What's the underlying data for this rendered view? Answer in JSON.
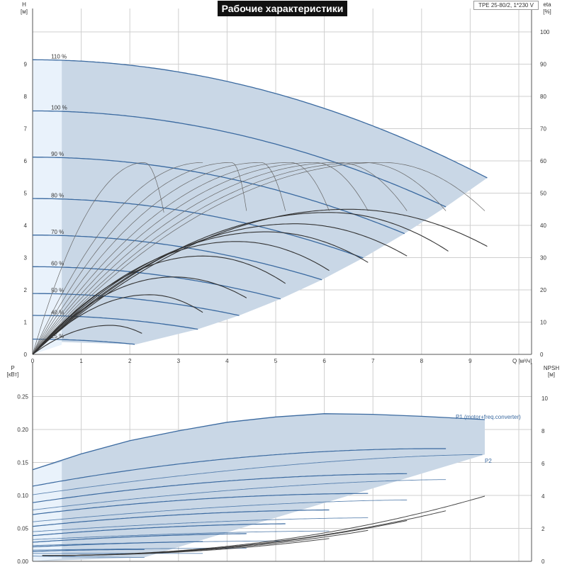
{
  "colors": {
    "band": "#c9d7e6",
    "band_light": "#e9f2fb",
    "curve": "#3b6aa0",
    "eta": "#333333",
    "grid": "#cfcfcf",
    "axis": "#555555"
  },
  "chart_data": [
    {
      "type": "line",
      "title": "Рабочие характеристики",
      "model": "TPE 25-80/2, 1*230 V",
      "xlabel": "Q [м³/ч]",
      "ylabel_left": [
        "H",
        "[м]"
      ],
      "ylabel_right": [
        "eta",
        "[%]"
      ],
      "xlim": [
        0,
        10
      ],
      "ylim": [
        0,
        10
      ],
      "y2lim": [
        0,
        110
      ],
      "xticks": [
        "0",
        "1",
        "2",
        "3",
        "4",
        "5",
        "6",
        "7",
        "8",
        "9"
      ],
      "yticks": [
        "0",
        "1",
        "2",
        "3",
        "4",
        "5",
        "6",
        "7",
        "8",
        "9"
      ],
      "y2ticks": [
        "0",
        "10",
        "20",
        "30",
        "40",
        "50",
        "60",
        "70",
        "80",
        "90",
        "100"
      ],
      "grid": true,
      "speed_curves": [
        {
          "label": "110 %",
          "s": 1.1
        },
        {
          "label": "100 %",
          "s": 1.0
        },
        {
          "label": "90 %",
          "s": 0.9
        },
        {
          "label": "80 %",
          "s": 0.8
        },
        {
          "label": "70 %",
          "s": 0.7
        },
        {
          "label": "60 %",
          "s": 0.6
        },
        {
          "label": "50 %",
          "s": 0.5
        },
        {
          "label": "40 %",
          "s": 0.4
        },
        {
          "label": "25 %",
          "s": 0.25
        }
      ],
      "head_curve_100": {
        "H0": 7.55,
        "a": 0.0343,
        "b": 0.0069,
        "qmax_110": 9.35
      },
      "eta_curves_grey": [
        {
          "qmax": 3.5,
          "qend": 3.5,
          "eend": 44.5
        },
        {
          "qmax": 4.1,
          "qend": 4.4,
          "eend": 44.5
        },
        {
          "qmax": 4.7,
          "qend": 5.2,
          "eend": 44.5
        },
        {
          "qmax": 5.3,
          "qend": 6.1,
          "eend": 44.5
        },
        {
          "qmax": 5.8,
          "qend": 6.9,
          "eend": 44.5
        },
        {
          "qmax": 6.3,
          "qend": 7.7,
          "eend": 44.5
        },
        {
          "qmax": 6.8,
          "qend": 8.5,
          "eend": 44.5
        },
        {
          "qmax": 7.2,
          "qend": 9.3,
          "eend": 44.5
        }
      ],
      "eta_top_center": {
        "qmax": 2.3,
        "qend": 2.3,
        "eend": 44.0
      },
      "eta_curves_black": [
        {
          "qpeak": 1.6,
          "epeak": 9.0,
          "qend": 2.25,
          "eend": 6.5
        },
        {
          "qpeak": 2.4,
          "epeak": 18.5,
          "qend": 3.5,
          "eend": 13.0
        },
        {
          "qpeak": 2.9,
          "epeak": 24.0,
          "qend": 4.4,
          "eend": 17.5
        },
        {
          "qpeak": 3.5,
          "epeak": 30.5,
          "qend": 5.2,
          "eend": 22.0
        },
        {
          "qpeak": 4.2,
          "epeak": 35.0,
          "qend": 6.1,
          "eend": 26.0
        },
        {
          "qpeak": 4.8,
          "epeak": 38.0,
          "qend": 6.9,
          "eend": 28.5
        },
        {
          "qpeak": 5.4,
          "epeak": 40.5,
          "qend": 7.7,
          "eend": 30.5
        },
        {
          "qpeak": 6.1,
          "epeak": 44.0,
          "qend": 8.55,
          "eend": 32.0
        },
        {
          "qpeak": 6.5,
          "epeak": 45.0,
          "qend": 9.35,
          "eend": 33.5
        }
      ]
    },
    {
      "type": "line",
      "ylabel_left": [
        "P",
        "[кВт]"
      ],
      "ylabel_right": [
        "NPSH",
        "[м]"
      ],
      "xlim": [
        0,
        10
      ],
      "ylim": [
        0,
        0.28
      ],
      "y2lim": [
        0,
        11
      ],
      "yticks": [
        "0.00",
        "0.05",
        "0.10",
        "0.15",
        "0.20",
        "0.25"
      ],
      "y2ticks": [
        "0",
        "2",
        "4",
        "6",
        "8",
        "10"
      ],
      "grid": true,
      "series_labels": [
        "P1 (motor+freq.converter)",
        "P2"
      ],
      "p1_top": {
        "x": [
          0,
          1,
          2,
          3,
          4,
          5,
          6,
          7,
          8,
          9.3
        ],
        "y": [
          0.139,
          0.163,
          0.183,
          0.198,
          0.211,
          0.219,
          0.224,
          0.223,
          0.22,
          0.215
        ]
      },
      "p1_lines": [
        {
          "p0": 0.114,
          "pmid": 0.172,
          "qend": 8.5,
          "pend": 0.171
        },
        {
          "p0": 0.089,
          "pmid": 0.131,
          "qend": 7.7,
          "pend": 0.133
        },
        {
          "p0": 0.071,
          "pmid": 0.102,
          "qend": 6.9,
          "pend": 0.103
        },
        {
          "p0": 0.053,
          "pmid": 0.076,
          "qend": 6.1,
          "pend": 0.078
        },
        {
          "p0": 0.039,
          "pmid": 0.055,
          "qend": 5.2,
          "pend": 0.057
        },
        {
          "p0": 0.029,
          "pmid": 0.04,
          "qend": 4.4,
          "pend": 0.042
        },
        {
          "p0": 0.022,
          "pmid": 0.028,
          "qend": 3.5,
          "pend": 0.03
        },
        {
          "p0": 0.015,
          "pmid": 0.018,
          "qend": 2.3,
          "pend": 0.018
        }
      ],
      "p2_lines": [
        {
          "p0": 0.101,
          "qend": 9.25,
          "pend": 0.162
        },
        {
          "p0": 0.078,
          "qend": 8.5,
          "pend": 0.124
        },
        {
          "p0": 0.06,
          "qend": 7.7,
          "pend": 0.093
        },
        {
          "p0": 0.045,
          "qend": 6.9,
          "pend": 0.066
        },
        {
          "p0": 0.033,
          "qend": 6.1,
          "pend": 0.046
        },
        {
          "p0": 0.024,
          "qend": 5.2,
          "pend": 0.031
        },
        {
          "p0": 0.017,
          "qend": 4.4,
          "pend": 0.02
        },
        {
          "p0": 0.012,
          "qend": 3.5,
          "pend": 0.012
        },
        {
          "p0": 0.008,
          "qend": 2.3,
          "pend": 0.006
        }
      ],
      "npsh_curves": [
        {
          "qend": 9.3,
          "nend": 4.0
        },
        {
          "qend": 8.5,
          "nend": 3.1
        },
        {
          "qend": 7.7,
          "nend": 2.5
        },
        {
          "qend": 6.9,
          "nend": 1.9
        },
        {
          "qend": 6.1,
          "nend": 1.4
        }
      ]
    }
  ]
}
